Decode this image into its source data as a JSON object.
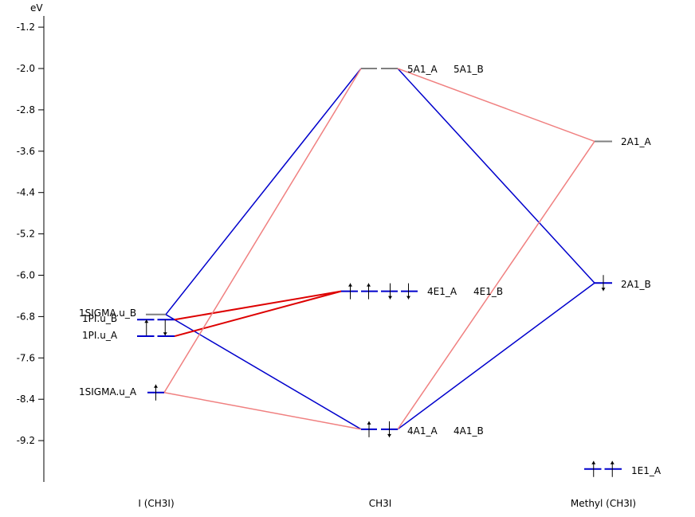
{
  "chart_data": {
    "type": "orbital-correlation-diagram",
    "y_unit": "eV",
    "yticks": [
      -1.2,
      -2.0,
      -2.8,
      -3.6,
      -4.4,
      -5.2,
      -6.0,
      -6.8,
      -7.6,
      -8.4,
      -9.2
    ],
    "columns": [
      {
        "id": "left",
        "label": "I (CH3I)"
      },
      {
        "id": "center",
        "label": "CH3I"
      },
      {
        "id": "right",
        "label": "Methyl (CH3I)"
      }
    ],
    "levels": [
      {
        "id": "1SIGMA.u_B",
        "column": "left",
        "energy": -6.76,
        "label": "1SIGMA.u_B",
        "electrons": "none",
        "color": "#808080"
      },
      {
        "id": "1PI.u_B",
        "column": "left",
        "energy": -6.86,
        "label": "1PI.u_B",
        "electrons": "paired",
        "color": "#0000cc"
      },
      {
        "id": "1PI.u_A",
        "column": "left",
        "energy": -7.18,
        "label": "1PI.u_A",
        "electrons": "none",
        "color": "#0000cc"
      },
      {
        "id": "1SIGMA.u_A",
        "column": "left",
        "energy": -8.27,
        "label": "1SIGMA.u_A",
        "electrons": "up",
        "color": "#0000cc"
      },
      {
        "id": "5A1_A",
        "column": "center",
        "energy": -2.0,
        "label": "5A1_A",
        "electrons": "none",
        "color": "#808080"
      },
      {
        "id": "5A1_B",
        "column": "center",
        "energy": -2.0,
        "label": "5A1_B",
        "electrons": "none",
        "color": "#808080"
      },
      {
        "id": "4E1_A",
        "column": "center",
        "energy": -6.31,
        "label": "4E1_A",
        "electrons": "up",
        "color": "#0000cc"
      },
      {
        "id": "4E1_B",
        "column": "center",
        "energy": -6.31,
        "label": "4E1_B",
        "electrons": "down",
        "color": "#0000cc"
      },
      {
        "id": "4A1_A",
        "column": "center",
        "energy": -8.98,
        "label": "4A1_A",
        "electrons": "up",
        "color": "#0000cc"
      },
      {
        "id": "4A1_B",
        "column": "center",
        "energy": -8.98,
        "label": "4A1_B",
        "electrons": "down",
        "color": "#0000cc"
      },
      {
        "id": "2A1_A",
        "column": "right",
        "energy": -3.41,
        "label": "2A1_A",
        "electrons": "none",
        "color": "#808080"
      },
      {
        "id": "2A1_B",
        "column": "right",
        "energy": -6.15,
        "label": "2A1_B",
        "electrons": "down",
        "color": "#0000cc"
      },
      {
        "id": "1E1_A",
        "column": "right",
        "energy": -9.75,
        "label": "1E1_A",
        "electrons": "up",
        "color": "#0000cc"
      }
    ],
    "correlations": [
      {
        "from": "1SIGMA.u_B",
        "to": "5A1_A",
        "color": "#0000cc"
      },
      {
        "from": "1SIGMA.u_B",
        "to": "4A1_A",
        "color": "#0000cc"
      },
      {
        "from": "1PI.u_B",
        "to": "4E1_A",
        "color": "#dd0000"
      },
      {
        "from": "1PI.u_A",
        "to": "4E1_A",
        "color": "#dd0000"
      },
      {
        "from": "1SIGMA.u_A",
        "to": "5A1_A",
        "color": "#f08080"
      },
      {
        "from": "1SIGMA.u_A",
        "to": "4A1_A",
        "color": "#f08080"
      },
      {
        "from": "5A1_B",
        "to": "2A1_B",
        "color": "#0000cc"
      },
      {
        "from": "4A1_B",
        "to": "2A1_B",
        "color": "#0000cc"
      },
      {
        "from": "5A1_B",
        "to": "2A1_A",
        "color": "#f08080"
      },
      {
        "from": "4A1_B",
        "to": "2A1_A",
        "color": "#f08080"
      }
    ]
  }
}
